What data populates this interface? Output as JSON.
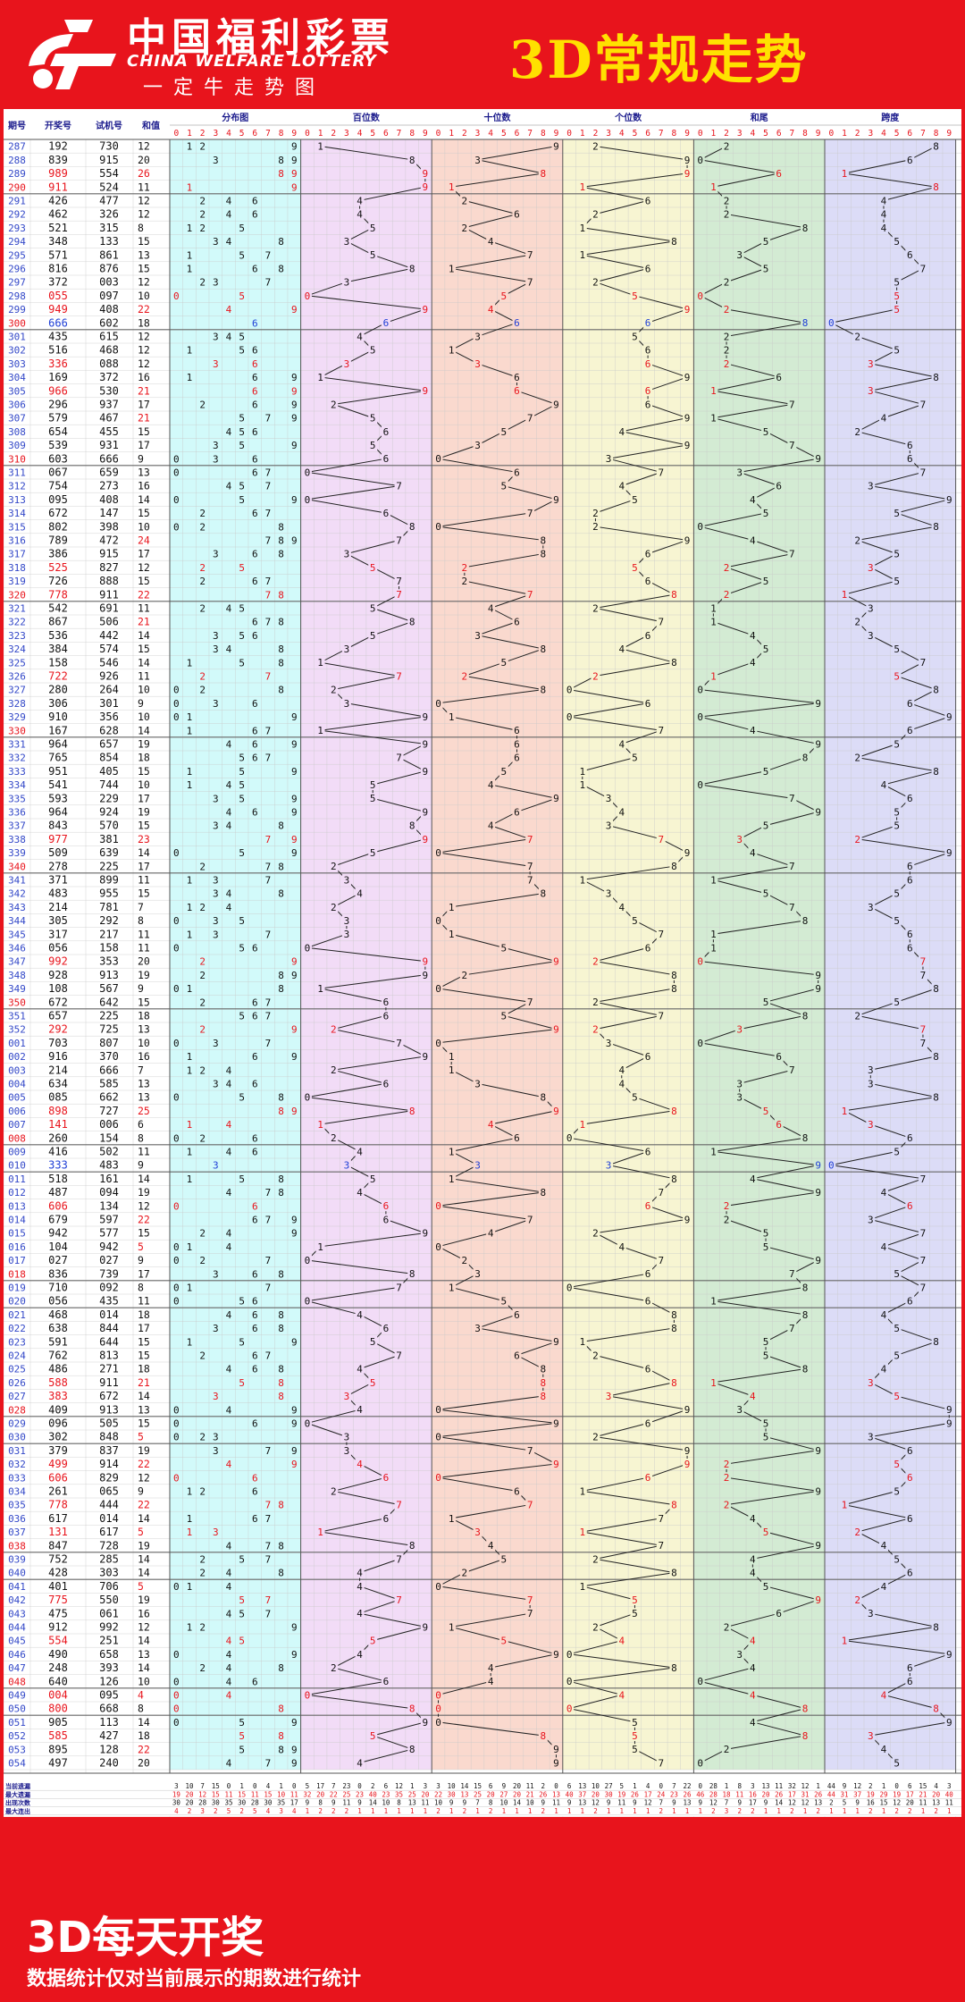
{
  "header": {
    "logo_text": "中国福利彩票",
    "logo_english": "CHINA WELFARE LOTTERY",
    "slogan": "一定牛走势图",
    "title": "3D常规走势"
  },
  "footer": {
    "title": "3D每天开奖",
    "note": "数据统计仅对当前展示的期数进行统计"
  },
  "columns": {
    "period": "期号",
    "draw": "开奖号",
    "trial": "试机号",
    "sum": "和值",
    "dist": "分布图",
    "hundreds": "百位数",
    "tens": "十位数",
    "units": "个位数",
    "sum_tail": "和尾",
    "span": "跨度"
  },
  "digits": [
    "0",
    "1",
    "2",
    "3",
    "4",
    "5",
    "6",
    "7",
    "8",
    "9"
  ],
  "stats_labels": [
    "当前遗漏",
    "最大遗漏",
    "出现次数",
    "最大连出"
  ],
  "colors": {
    "red": "#e8141c",
    "yellow": "#ffe100",
    "dist": "#d2fafa",
    "hundreds": "#f2dcf7",
    "tens": "#fad9ce",
    "units": "#f7f5d2",
    "sum_tail": "#d3ebd3",
    "span": "#dcdcf7",
    "hit_red": "#e8141c",
    "hit_blue": "#1f3fd6"
  },
  "chart_data": {
    "type": "table",
    "rows": [
      [
        "287",
        "192",
        "730",
        "12"
      ],
      [
        "288",
        "839",
        "915",
        "20"
      ],
      [
        "289",
        "989",
        "554",
        "26"
      ],
      [
        "290",
        "911",
        "524",
        "11"
      ],
      [
        "291",
        "426",
        "477",
        "12"
      ],
      [
        "292",
        "462",
        "326",
        "12"
      ],
      [
        "293",
        "521",
        "315",
        "8"
      ],
      [
        "294",
        "348",
        "133",
        "15"
      ],
      [
        "295",
        "571",
        "861",
        "13"
      ],
      [
        "296",
        "816",
        "876",
        "15"
      ],
      [
        "297",
        "372",
        "003",
        "12"
      ],
      [
        "298",
        "055",
        "097",
        "10"
      ],
      [
        "299",
        "949",
        "408",
        "22"
      ],
      [
        "300",
        "666",
        "602",
        "18"
      ],
      [
        "301",
        "435",
        "615",
        "12"
      ],
      [
        "302",
        "516",
        "468",
        "12"
      ],
      [
        "303",
        "336",
        "088",
        "12"
      ],
      [
        "304",
        "169",
        "372",
        "16"
      ],
      [
        "305",
        "966",
        "530",
        "21"
      ],
      [
        "306",
        "296",
        "937",
        "17"
      ],
      [
        "307",
        "579",
        "467",
        "21"
      ],
      [
        "308",
        "654",
        "455",
        "15"
      ],
      [
        "309",
        "539",
        "931",
        "17"
      ],
      [
        "310",
        "603",
        "666",
        "9"
      ],
      [
        "311",
        "067",
        "659",
        "13"
      ],
      [
        "312",
        "754",
        "273",
        "16"
      ],
      [
        "313",
        "095",
        "408",
        "14"
      ],
      [
        "314",
        "672",
        "147",
        "15"
      ],
      [
        "315",
        "802",
        "398",
        "10"
      ],
      [
        "316",
        "789",
        "472",
        "24"
      ],
      [
        "317",
        "386",
        "915",
        "17"
      ],
      [
        "318",
        "525",
        "827",
        "12"
      ],
      [
        "319",
        "726",
        "888",
        "15"
      ],
      [
        "320",
        "778",
        "911",
        "22"
      ],
      [
        "321",
        "542",
        "691",
        "11"
      ],
      [
        "322",
        "867",
        "506",
        "21"
      ],
      [
        "323",
        "536",
        "442",
        "14"
      ],
      [
        "324",
        "384",
        "574",
        "15"
      ],
      [
        "325",
        "158",
        "546",
        "14"
      ],
      [
        "326",
        "722",
        "926",
        "11"
      ],
      [
        "327",
        "280",
        "264",
        "10"
      ],
      [
        "328",
        "306",
        "301",
        "9"
      ],
      [
        "329",
        "910",
        "356",
        "10"
      ],
      [
        "330",
        "167",
        "628",
        "14"
      ],
      [
        "331",
        "964",
        "657",
        "19"
      ],
      [
        "332",
        "765",
        "854",
        "18"
      ],
      [
        "333",
        "951",
        "405",
        "15"
      ],
      [
        "334",
        "541",
        "744",
        "10"
      ],
      [
        "335",
        "593",
        "229",
        "17"
      ],
      [
        "336",
        "964",
        "924",
        "19"
      ],
      [
        "337",
        "843",
        "570",
        "15"
      ],
      [
        "338",
        "977",
        "381",
        "23"
      ],
      [
        "339",
        "509",
        "639",
        "14"
      ],
      [
        "340",
        "278",
        "225",
        "17"
      ],
      [
        "341",
        "371",
        "899",
        "11"
      ],
      [
        "342",
        "483",
        "955",
        "15"
      ],
      [
        "343",
        "214",
        "781",
        "7"
      ],
      [
        "344",
        "305",
        "292",
        "8"
      ],
      [
        "345",
        "317",
        "217",
        "11"
      ],
      [
        "346",
        "056",
        "158",
        "11"
      ],
      [
        "347",
        "992",
        "353",
        "20"
      ],
      [
        "348",
        "928",
        "913",
        "19"
      ],
      [
        "349",
        "108",
        "567",
        "9"
      ],
      [
        "350",
        "672",
        "642",
        "15"
      ],
      [
        "351",
        "657",
        "225",
        "18"
      ],
      [
        "352",
        "292",
        "725",
        "13"
      ],
      [
        "001",
        "703",
        "807",
        "10"
      ],
      [
        "002",
        "916",
        "370",
        "16"
      ],
      [
        "003",
        "214",
        "666",
        "7"
      ],
      [
        "004",
        "634",
        "585",
        "13"
      ],
      [
        "005",
        "085",
        "662",
        "13"
      ],
      [
        "006",
        "898",
        "727",
        "25"
      ],
      [
        "007",
        "141",
        "006",
        "6"
      ],
      [
        "008",
        "260",
        "154",
        "8"
      ],
      [
        "009",
        "416",
        "502",
        "11"
      ],
      [
        "010",
        "333",
        "483",
        "9"
      ],
      [
        "011",
        "518",
        "161",
        "14"
      ],
      [
        "012",
        "487",
        "094",
        "19"
      ],
      [
        "013",
        "606",
        "134",
        "12"
      ],
      [
        "014",
        "679",
        "597",
        "22"
      ],
      [
        "015",
        "942",
        "577",
        "15"
      ],
      [
        "016",
        "104",
        "942",
        "5"
      ],
      [
        "017",
        "027",
        "027",
        "9"
      ],
      [
        "018",
        "836",
        "739",
        "17"
      ],
      [
        "019",
        "710",
        "092",
        "8"
      ],
      [
        "020",
        "056",
        "435",
        "11"
      ],
      [
        "021",
        "468",
        "014",
        "18"
      ],
      [
        "022",
        "638",
        "844",
        "17"
      ],
      [
        "023",
        "591",
        "644",
        "15"
      ],
      [
        "024",
        "762",
        "813",
        "15"
      ],
      [
        "025",
        "486",
        "271",
        "18"
      ],
      [
        "026",
        "588",
        "911",
        "21"
      ],
      [
        "027",
        "383",
        "672",
        "14"
      ],
      [
        "028",
        "409",
        "913",
        "13"
      ],
      [
        "029",
        "096",
        "505",
        "15"
      ],
      [
        "030",
        "302",
        "848",
        "5"
      ],
      [
        "031",
        "379",
        "837",
        "19"
      ],
      [
        "032",
        "499",
        "914",
        "22"
      ],
      [
        "033",
        "606",
        "829",
        "12"
      ],
      [
        "034",
        "261",
        "065",
        "9"
      ],
      [
        "035",
        "778",
        "444",
        "22"
      ],
      [
        "036",
        "617",
        "014",
        "14"
      ],
      [
        "037",
        "131",
        "617",
        "5"
      ],
      [
        "038",
        "847",
        "728",
        "19"
      ],
      [
        "039",
        "752",
        "285",
        "14"
      ],
      [
        "040",
        "428",
        "303",
        "14"
      ],
      [
        "041",
        "401",
        "706",
        "5"
      ],
      [
        "042",
        "775",
        "550",
        "19"
      ],
      [
        "043",
        "475",
        "061",
        "16"
      ],
      [
        "044",
        "912",
        "992",
        "12"
      ],
      [
        "045",
        "554",
        "251",
        "14"
      ],
      [
        "046",
        "490",
        "658",
        "13"
      ],
      [
        "047",
        "248",
        "393",
        "14"
      ],
      [
        "048",
        "640",
        "126",
        "10"
      ],
      [
        "049",
        "004",
        "095",
        "4"
      ],
      [
        "050",
        "800",
        "668",
        "8"
      ],
      [
        "051",
        "905",
        "113",
        "14"
      ],
      [
        "052",
        "585",
        "427",
        "18"
      ],
      [
        "053",
        "895",
        "128",
        "22"
      ],
      [
        "054",
        "497",
        "240",
        "20"
      ]
    ],
    "stats": {
      "dist": [
        [
          3,
          10,
          7,
          15,
          0,
          1,
          0,
          4,
          1,
          0
        ],
        [
          19,
          20,
          12,
          15,
          11,
          15,
          11,
          15,
          10,
          11
        ],
        [
          30,
          20,
          28,
          30,
          35,
          30,
          28,
          30,
          35,
          17
        ],
        [
          4,
          2,
          3,
          2,
          5,
          2,
          5,
          4,
          3,
          4
        ]
      ],
      "hundreds": [
        [
          5,
          17,
          7,
          23,
          0,
          2,
          6,
          12,
          1,
          3
        ],
        [
          32,
          20,
          22,
          25,
          23,
          40,
          23,
          35,
          25,
          20
        ],
        [
          9,
          8,
          9,
          11,
          9,
          14,
          10,
          8,
          13,
          11
        ],
        [
          1,
          2,
          2,
          2,
          1,
          1,
          1,
          1,
          1,
          1
        ]
      ],
      "tens": [
        [
          3,
          10,
          14,
          15,
          6,
          9,
          20,
          11,
          2,
          0
        ],
        [
          22,
          30,
          13,
          25,
          20,
          27,
          20,
          21,
          26,
          13
        ],
        [
          10,
          9,
          9,
          7,
          8,
          10,
          14,
          10,
          9,
          11
        ],
        [
          2,
          1,
          2,
          1,
          2,
          1,
          1,
          1,
          2,
          1
        ]
      ],
      "units": [
        [
          6,
          13,
          10,
          27,
          5,
          1,
          4,
          0,
          7,
          22
        ],
        [
          40,
          37,
          20,
          30,
          19,
          26,
          17,
          24,
          23,
          26
        ],
        [
          9,
          13,
          12,
          9,
          11,
          9,
          12,
          7,
          9,
          13
        ],
        [
          1,
          1,
          2,
          1,
          1,
          1,
          1,
          2,
          1,
          1
        ]
      ],
      "sum_tail": [
        [
          0,
          28,
          1,
          8,
          3,
          13,
          11,
          32,
          12,
          1
        ],
        [
          46,
          28,
          18,
          11,
          16,
          20,
          26,
          17,
          31,
          26
        ],
        [
          9,
          12,
          7,
          9,
          17,
          9,
          14,
          12,
          12,
          13
        ],
        [
          1,
          2,
          3,
          2,
          2,
          1,
          1,
          2,
          1,
          2
        ]
      ],
      "span": [
        [
          44,
          9,
          12,
          2,
          1,
          0,
          6,
          15,
          4,
          3
        ],
        [
          44,
          31,
          37,
          19,
          29,
          19,
          17,
          21,
          20,
          40
        ],
        [
          2,
          5,
          9,
          16,
          15,
          12,
          20,
          11,
          13,
          11
        ],
        [
          1,
          1,
          1,
          2,
          1,
          2,
          2,
          1,
          2,
          1
        ]
      ]
    }
  }
}
